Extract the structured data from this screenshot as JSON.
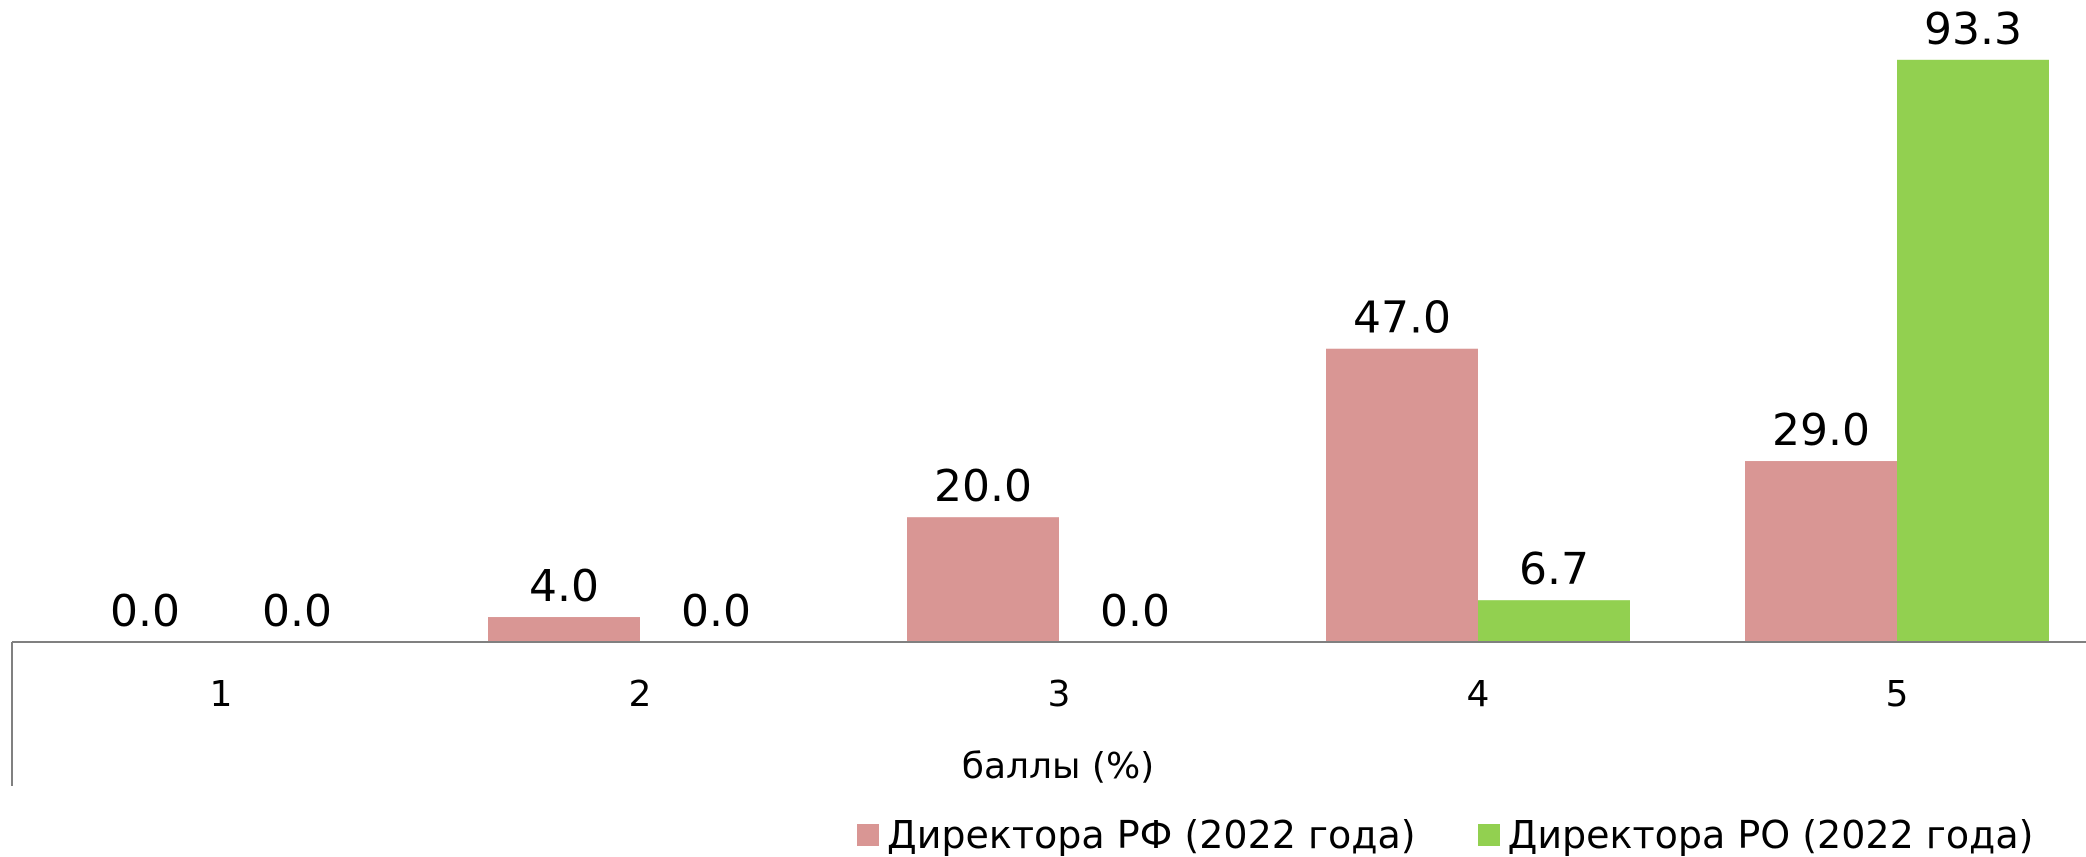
{
  "chart_data": {
    "type": "bar",
    "categories": [
      "1",
      "2",
      "3",
      "4",
      "5"
    ],
    "series": [
      {
        "name": "Директора РФ (2022 года)",
        "values": [
          0.0,
          4.0,
          20.0,
          47.0,
          29.0
        ],
        "labels": [
          "0.0",
          "4.0",
          "20.0",
          "47.0",
          "29.0"
        ],
        "color": "#d99694"
      },
      {
        "name": "Директора РО (2022 года)",
        "values": [
          0.0,
          0.0,
          0.0,
          6.7,
          93.3
        ],
        "labels": [
          "0.0",
          "0.0",
          "0.0",
          "6.7",
          "93.3"
        ],
        "color": "#92d050"
      }
    ],
    "xlabel": "баллы (%)",
    "ylabel": "",
    "ylim": [
      0,
      100
    ],
    "grid": false,
    "legend_position": "bottom-right"
  }
}
